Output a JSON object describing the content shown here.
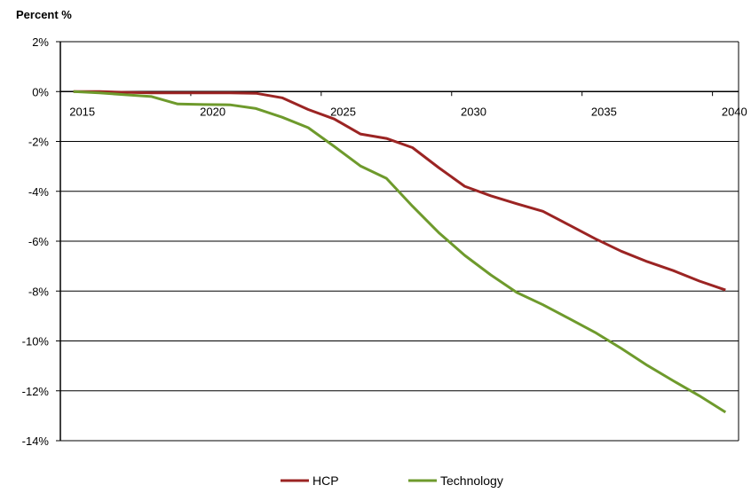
{
  "chart_data": {
    "type": "line",
    "title": "Percent %",
    "xlabel": "",
    "ylabel": "",
    "ylim": [
      -14,
      2
    ],
    "ytick_labels": [
      "2%",
      "0%",
      "-2%",
      "-4%",
      "-6%",
      "-8%",
      "-10%",
      "-12%",
      "-14%"
    ],
    "yticks": [
      2,
      0,
      -2,
      -4,
      -6,
      -8,
      -10,
      -12,
      -14
    ],
    "x": [
      2015,
      2016,
      2017,
      2018,
      2019,
      2020,
      2021,
      2022,
      2023,
      2024,
      2025,
      2026,
      2027,
      2028,
      2029,
      2030,
      2031,
      2032,
      2033,
      2034,
      2035,
      2036,
      2037,
      2038,
      2039,
      2040
    ],
    "xtick_labels": [
      "2015",
      "2020",
      "2025",
      "2030",
      "2035",
      "2040"
    ],
    "xticks": [
      2015,
      2020,
      2025,
      2030,
      2035,
      2040
    ],
    "grid": "horizontal",
    "legend": "bottom",
    "series": [
      {
        "name": "HCP",
        "color": "#9b2423",
        "values": [
          0,
          0,
          -0.03,
          -0.05,
          -0.05,
          -0.05,
          -0.05,
          -0.07,
          -0.25,
          -0.72,
          -1.1,
          -1.7,
          -1.88,
          -2.25,
          -3.05,
          -3.8,
          -4.18,
          -4.5,
          -4.8,
          -5.35,
          -5.9,
          -6.4,
          -6.82,
          -7.18,
          -7.6,
          -7.96
        ]
      },
      {
        "name": "Technology",
        "color": "#6e9a2c",
        "values": [
          0,
          -0.05,
          -0.13,
          -0.2,
          -0.5,
          -0.52,
          -0.53,
          -0.68,
          -1.03,
          -1.45,
          -2.2,
          -2.98,
          -3.48,
          -4.6,
          -5.65,
          -6.57,
          -7.35,
          -8.06,
          -8.55,
          -9.1,
          -9.66,
          -10.3,
          -10.98,
          -11.6,
          -12.2,
          -12.86
        ]
      }
    ]
  }
}
